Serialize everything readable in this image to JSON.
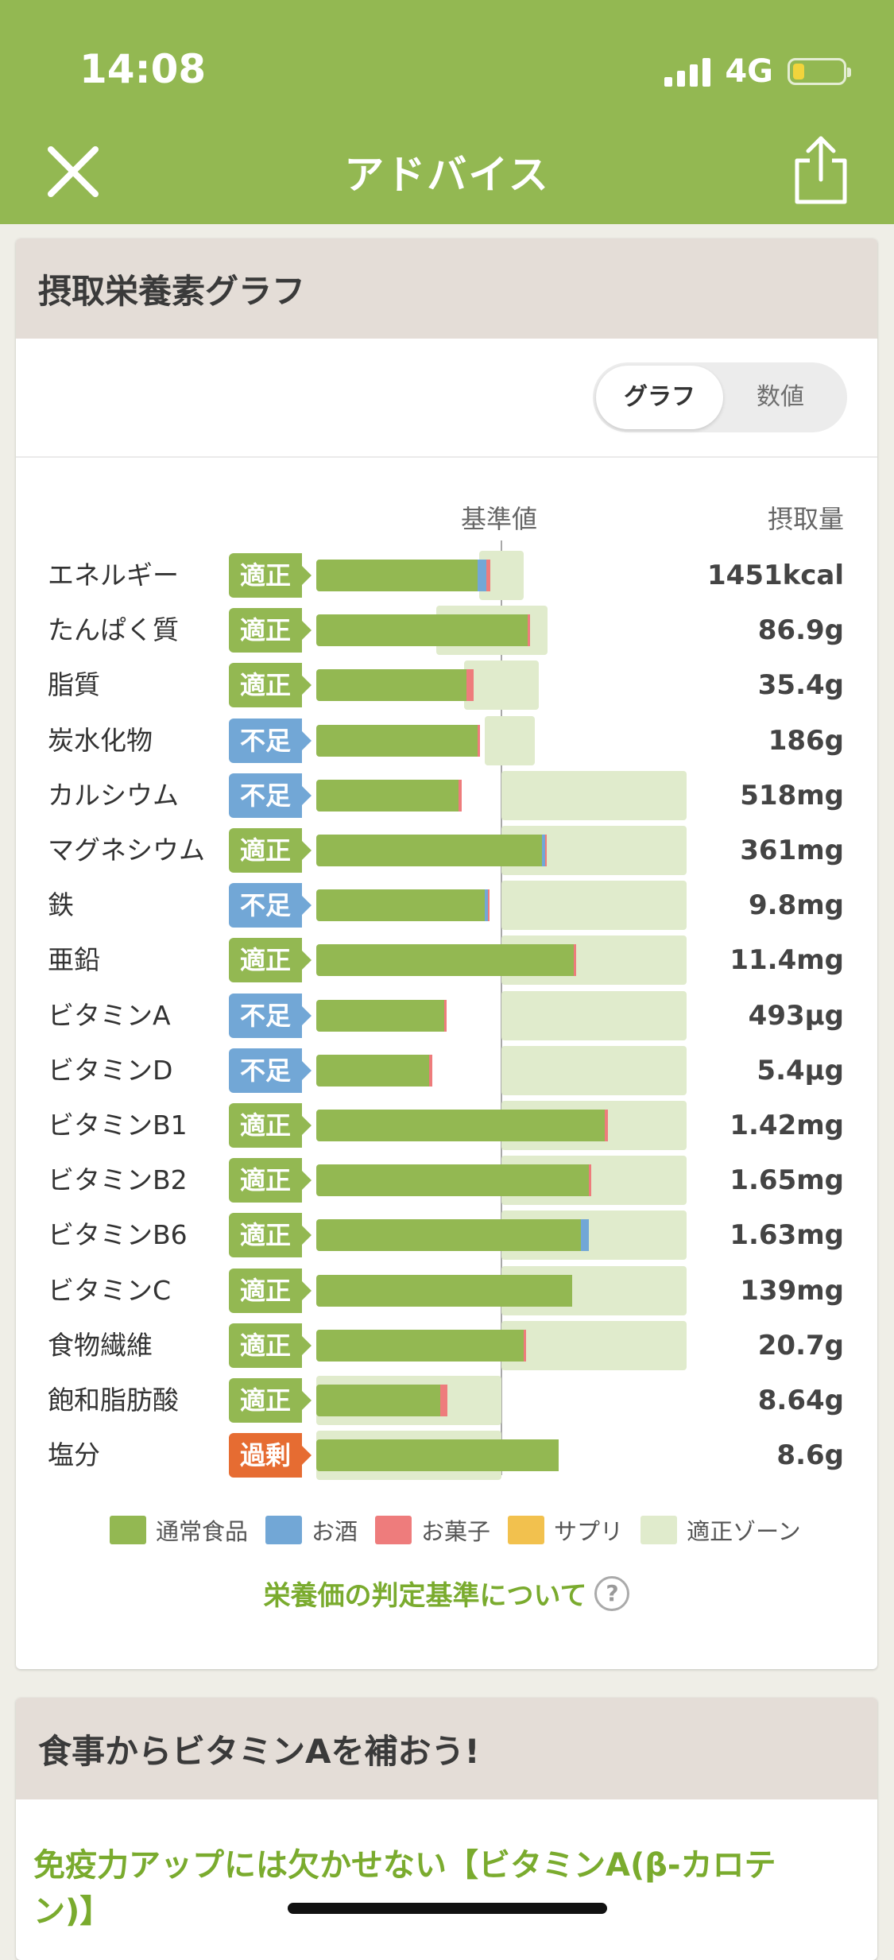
{
  "status_bar": {
    "time": "14:08",
    "network": "4G"
  },
  "nav": {
    "title": "アドバイス",
    "close_icon": "close-icon",
    "share_icon": "share-icon"
  },
  "graph_card": {
    "header": "摂取栄養素グラフ",
    "toggle": {
      "graph": "グラフ",
      "numeric": "数値",
      "selected": "グラフ"
    },
    "col_reference": "基準値",
    "col_intake": "摂取量",
    "rows": [
      {
        "name": "エネルギー",
        "status": "適正",
        "status_type": "ok",
        "value": "1451kcal",
        "zone": [
          0.88,
          1.12
        ],
        "normal": 0.87,
        "alcohol": 0.05,
        "snack": 0.02
      },
      {
        "name": "たんぱく質",
        "status": "適正",
        "status_type": "ok",
        "value": "86.9g",
        "zone": [
          0.65,
          1.25
        ],
        "normal": 1.14,
        "alcohol": 0,
        "snack": 0.015
      },
      {
        "name": "脂質",
        "status": "適正",
        "status_type": "ok",
        "value": "35.4g",
        "zone": [
          0.8,
          1.2
        ],
        "normal": 0.81,
        "alcohol": 0,
        "snack": 0.04
      },
      {
        "name": "炭水化物",
        "status": "不足",
        "status_type": "low",
        "value": "186g",
        "zone": [
          0.91,
          1.18
        ],
        "normal": 0.87,
        "alcohol": 0,
        "snack": 0.015
      },
      {
        "name": "カルシウム",
        "status": "不足",
        "status_type": "low",
        "value": "518mg",
        "zone": [
          1.0,
          2.0
        ],
        "normal": 0.77,
        "alcohol": 0,
        "snack": 0.015
      },
      {
        "name": "マグネシウム",
        "status": "適正",
        "status_type": "ok",
        "value": "361mg",
        "zone": [
          1.0,
          2.0
        ],
        "normal": 1.22,
        "alcohol": 0.015,
        "snack": 0.01
      },
      {
        "name": "鉄",
        "status": "不足",
        "status_type": "low",
        "value": "9.8mg",
        "zone": [
          1.0,
          2.0
        ],
        "normal": 0.91,
        "alcohol": 0.015,
        "snack": 0.01
      },
      {
        "name": "亜鉛",
        "status": "適正",
        "status_type": "ok",
        "value": "11.4mg",
        "zone": [
          1.0,
          2.0
        ],
        "normal": 1.39,
        "alcohol": 0,
        "snack": 0.015
      },
      {
        "name": "ビタミンA",
        "status": "不足",
        "status_type": "low",
        "value": "493μg",
        "zone": [
          1.0,
          2.0
        ],
        "normal": 0.69,
        "alcohol": 0,
        "snack": 0.015
      },
      {
        "name": "ビタミンD",
        "status": "不足",
        "status_type": "low",
        "value": "5.4μg",
        "zone": [
          1.0,
          2.0
        ],
        "normal": 0.61,
        "alcohol": 0,
        "snack": 0.015
      },
      {
        "name": "ビタミンB1",
        "status": "適正",
        "status_type": "ok",
        "value": "1.42mg",
        "zone": [
          1.0,
          2.0
        ],
        "normal": 1.56,
        "alcohol": 0,
        "snack": 0.015
      },
      {
        "name": "ビタミンB2",
        "status": "適正",
        "status_type": "ok",
        "value": "1.65mg",
        "zone": [
          1.0,
          2.0
        ],
        "normal": 1.47,
        "alcohol": 0,
        "snack": 0.015
      },
      {
        "name": "ビタミンB6",
        "status": "適正",
        "status_type": "ok",
        "value": "1.63mg",
        "zone": [
          1.0,
          2.0
        ],
        "normal": 1.43,
        "alcohol": 0.04,
        "snack": 0
      },
      {
        "name": "ビタミンC",
        "status": "適正",
        "status_type": "ok",
        "value": "139mg",
        "zone": [
          1.0,
          2.0
        ],
        "normal": 1.38,
        "alcohol": 0,
        "snack": 0
      },
      {
        "name": "食物繊維",
        "status": "適正",
        "status_type": "ok",
        "value": "20.7g",
        "zone": [
          1.0,
          2.0
        ],
        "normal": 1.12,
        "alcohol": 0,
        "snack": 0.015
      },
      {
        "name": "飽和脂肪酸",
        "status": "適正",
        "status_type": "ok",
        "value": "8.64g",
        "zone": [
          0.0,
          1.0
        ],
        "normal": 0.67,
        "alcohol": 0,
        "snack": 0.04
      },
      {
        "name": "塩分",
        "status": "過剰",
        "status_type": "over",
        "value": "8.6g",
        "zone": [
          0.0,
          1.0
        ],
        "normal": 1.31,
        "alcohol": 0,
        "snack": 0
      }
    ],
    "legend": [
      {
        "label": "通常食品",
        "color": "#93b852"
      },
      {
        "label": "お酒",
        "color": "#72a7d6"
      },
      {
        "label": "お菓子",
        "color": "#ee7c7c"
      },
      {
        "label": "サプリ",
        "color": "#f2c14e"
      },
      {
        "label": "適正ゾーン",
        "color": "#e0ebcc"
      }
    ],
    "criteria_link": "栄養価の判定基準について"
  },
  "advice_card": {
    "header": "食事からビタミンAを補おう!",
    "article_title": "免疫力アップには欠かせない【ビタミンA(β-カロテン)】"
  }
}
